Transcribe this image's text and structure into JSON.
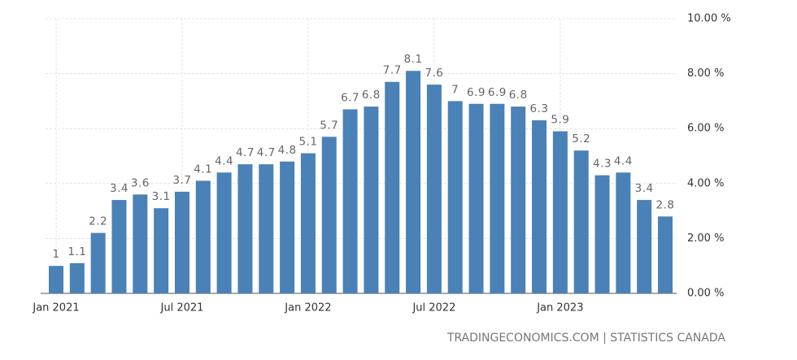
{
  "chart_data": {
    "type": "bar",
    "categories": [
      "Jan 2021",
      null,
      null,
      null,
      null,
      null,
      "Jul 2021",
      null,
      null,
      null,
      null,
      null,
      "Jan 2022",
      null,
      null,
      null,
      null,
      null,
      "Jul 2022",
      null,
      null,
      null,
      null,
      null,
      "Jan 2023",
      null,
      null,
      null,
      null,
      null
    ],
    "values": [
      1,
      1.1,
      2.2,
      3.4,
      3.6,
      3.1,
      3.7,
      4.1,
      4.4,
      4.7,
      4.7,
      4.8,
      5.1,
      5.7,
      6.7,
      6.8,
      7.7,
      8.1,
      7.6,
      7,
      6.9,
      6.9,
      6.8,
      6.3,
      5.9,
      5.2,
      4.3,
      4.4,
      3.4,
      2.8
    ],
    "color": "#4a81b7",
    "ylim": [
      0,
      10
    ],
    "yticks": [
      {
        "value": 0,
        "label": "0.00 %"
      },
      {
        "value": 2,
        "label": "2.00 %"
      },
      {
        "value": 4,
        "label": "4.00 %"
      },
      {
        "value": 6,
        "label": "6.00 %"
      },
      {
        "value": 8,
        "label": "8.00 %"
      },
      {
        "value": 10,
        "label": "10.00 %"
      }
    ],
    "grid": true,
    "source": "TRADINGECONOMICS.COM | STATISTICS CANADA"
  }
}
